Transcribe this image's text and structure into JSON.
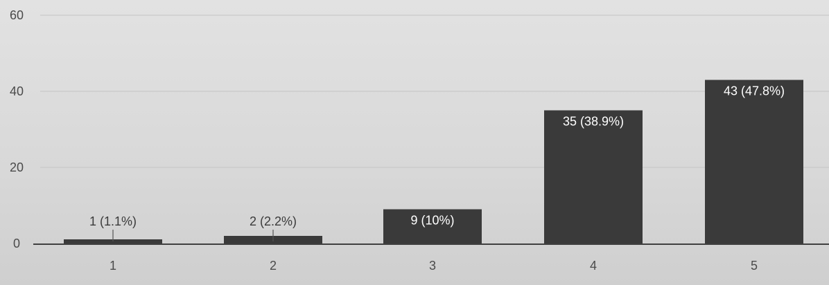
{
  "chart_data": {
    "type": "bar",
    "categories": [
      "1",
      "2",
      "3",
      "4",
      "5"
    ],
    "values": [
      1,
      2,
      9,
      35,
      43
    ],
    "data_labels": [
      "1 (1.1%)",
      "2 (2.2%)",
      "9 (10%)",
      "35 (38.9%)",
      "43 (47.8%)"
    ],
    "y_ticks": [
      "0",
      "20",
      "40",
      "60"
    ],
    "ylim": [
      0,
      60
    ],
    "title": "",
    "xlabel": "",
    "ylabel": "",
    "grid": true,
    "legend": "none",
    "colors": {
      "bar": "#3a3a3a",
      "grid": "#c4c4c4",
      "axis": "#3f3f3f"
    }
  }
}
